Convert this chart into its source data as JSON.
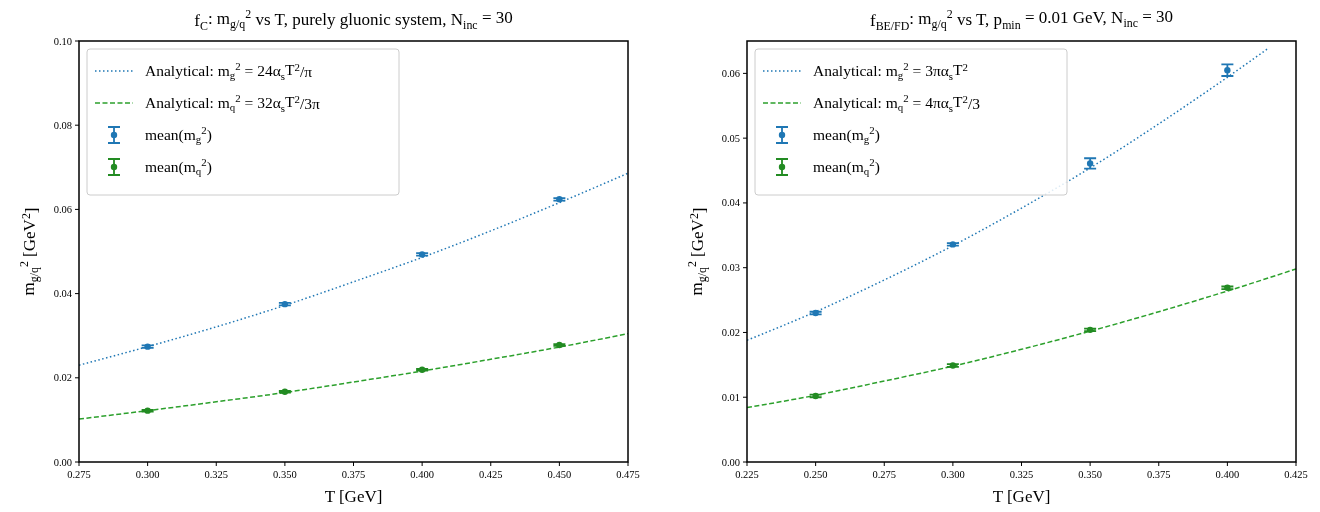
{
  "chart_data": [
    {
      "type": "line",
      "title": "f$_{C}$: m$_{g/q}$$^{2}$ vs T, purely gluonic system, N$_{inc}$ = 30",
      "xlabel": "T [GeV]",
      "ylabel": "m$_{g/q}$$^{2}$ [GeV$^{2}$]",
      "xlim": [
        0.275,
        0.475
      ],
      "xticks": [
        {
          "value": 0.275,
          "label": "0.275"
        },
        {
          "value": 0.3,
          "label": "0.300"
        },
        {
          "value": 0.325,
          "label": "0.325"
        },
        {
          "value": 0.35,
          "label": "0.350"
        },
        {
          "value": 0.375,
          "label": "0.375"
        },
        {
          "value": 0.4,
          "label": "0.400"
        },
        {
          "value": 0.425,
          "label": "0.425"
        },
        {
          "value": 0.45,
          "label": "0.450"
        },
        {
          "value": 0.475,
          "label": "0.475"
        }
      ],
      "ylim": [
        0,
        0.1
      ],
      "yticks": [
        {
          "value": 0,
          "label": "0.00"
        },
        {
          "value": 0.02,
          "label": "0.02"
        },
        {
          "value": 0.04,
          "label": "0.04"
        },
        {
          "value": 0.06,
          "label": "0.06"
        },
        {
          "value": 0.08,
          "label": "0.08"
        },
        {
          "value": 0.1,
          "label": "0.10"
        }
      ],
      "legend": "top left",
      "grid": false,
      "series": [
        {
          "name": "Analytical: m$_{g}$$^{2}$ = 24α$_{s}$T$^{2}$/π",
          "color": "#1f77b4",
          "line_style": "dotted",
          "x": [
            0.275,
            0.3,
            0.325,
            0.35,
            0.375,
            0.4,
            0.425,
            0.45,
            0.475
          ],
          "values": [
            0.023,
            0.0274,
            0.0321,
            0.0372,
            0.0428,
            0.0486,
            0.0549,
            0.0616,
            0.0686
          ]
        },
        {
          "name": "Analytical: m$_{q}$$^{2}$ = 32α$_{s}$T$^{2}$/3π",
          "color": "#2ca02c",
          "line_style": "dashed",
          "x": [
            0.275,
            0.3,
            0.325,
            0.35,
            0.375,
            0.4,
            0.425,
            0.45,
            0.475
          ],
          "values": [
            0.0102,
            0.0122,
            0.0143,
            0.0165,
            0.019,
            0.0216,
            0.0244,
            0.0273,
            0.0305
          ]
        },
        {
          "type": "scatter",
          "name": "mean(m$_{g}$$^{2}$)",
          "color": "#1f77b4",
          "marker": "circle",
          "x": [
            0.3,
            0.35,
            0.4,
            0.45
          ],
          "values": [
            0.0274,
            0.0375,
            0.0493,
            0.0624
          ],
          "errors": [
            0.0003,
            0.0003,
            0.0003,
            0.0003
          ]
        },
        {
          "type": "scatter",
          "name": "mean(m$_{q}$$^{2}$)",
          "color": "#228b22",
          "marker": "circle",
          "x": [
            0.3,
            0.35,
            0.4,
            0.45
          ],
          "values": [
            0.0122,
            0.0167,
            0.0219,
            0.0278
          ],
          "errors": [
            0.0002,
            0.0002,
            0.0002,
            0.0002
          ]
        }
      ]
    },
    {
      "type": "line",
      "title": "f$_{BE/FD}$: m$_{g/q}$$^{2}$ vs T, p$_{min}$ = 0.01 GeV, N$_{inc}$ = 30",
      "xlabel": "T [GeV]",
      "ylabel": "m$_{g/q}$$^{2}$ [GeV$^{2}$]",
      "xlim": [
        0.225,
        0.425
      ],
      "xticks": [
        {
          "value": 0.225,
          "label": "0.225"
        },
        {
          "value": 0.25,
          "label": "0.250"
        },
        {
          "value": 0.275,
          "label": "0.275"
        },
        {
          "value": 0.3,
          "label": "0.300"
        },
        {
          "value": 0.325,
          "label": "0.325"
        },
        {
          "value": 0.35,
          "label": "0.350"
        },
        {
          "value": 0.375,
          "label": "0.375"
        },
        {
          "value": 0.4,
          "label": "0.400"
        },
        {
          "value": 0.425,
          "label": "0.425"
        }
      ],
      "ylim": [
        0,
        0.065
      ],
      "yticks": [
        {
          "value": 0,
          "label": "0.00"
        },
        {
          "value": 0.01,
          "label": "0.01"
        },
        {
          "value": 0.02,
          "label": "0.02"
        },
        {
          "value": 0.03,
          "label": "0.03"
        },
        {
          "value": 0.04,
          "label": "0.04"
        },
        {
          "value": 0.05,
          "label": "0.05"
        },
        {
          "value": 0.06,
          "label": "0.06"
        }
      ],
      "legend": "top left",
      "grid": false,
      "series": [
        {
          "name": "Analytical: m$_{g}$$^{2}$ = 3πα$_{s}$T$^{2}$",
          "color": "#1f77b4",
          "line_style": "dotted",
          "x": [
            0.225,
            0.25,
            0.275,
            0.3,
            0.325,
            0.35,
            0.375,
            0.4,
            0.415
          ],
          "values": [
            0.0188,
            0.0232,
            0.0281,
            0.0334,
            0.0392,
            0.0454,
            0.0522,
            0.0594,
            0.0639
          ]
        },
        {
          "name": "Analytical: m$_{q}$$^{2}$ = 4πα$_{s}$T$^{2}$/3",
          "color": "#2ca02c",
          "line_style": "dashed",
          "x": [
            0.225,
            0.25,
            0.275,
            0.3,
            0.325,
            0.35,
            0.375,
            0.4,
            0.425
          ],
          "values": [
            0.0084,
            0.0103,
            0.0125,
            0.0148,
            0.0174,
            0.0202,
            0.0232,
            0.0264,
            0.0298
          ]
        },
        {
          "type": "scatter",
          "name": "mean(m$_{g}$$^{2}$)",
          "color": "#1f77b4",
          "marker": "circle",
          "x": [
            0.25,
            0.3,
            0.35,
            0.4
          ],
          "values": [
            0.023,
            0.0336,
            0.0461,
            0.0605
          ],
          "errors": [
            0.0002,
            0.0002,
            0.0008,
            0.0009
          ]
        },
        {
          "type": "scatter",
          "name": "mean(m$_{q}$$^{2}$)",
          "color": "#228b22",
          "marker": "circle",
          "x": [
            0.25,
            0.3,
            0.35,
            0.4
          ],
          "values": [
            0.0102,
            0.0149,
            0.0204,
            0.0269
          ],
          "errors": [
            0.0002,
            0.0002,
            0.0002,
            0.0002
          ]
        }
      ]
    }
  ]
}
